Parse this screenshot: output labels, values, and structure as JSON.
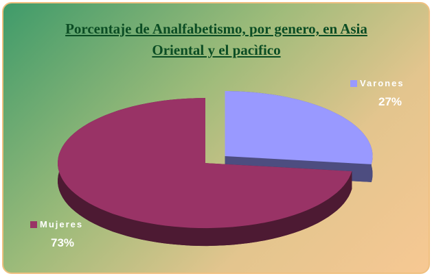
{
  "chart_data": {
    "type": "pie",
    "title": "Porcentaje de Analfabetismo, por genero, en Asia Oriental y el pacìfico",
    "categories": [
      "Varones",
      "Mujeres"
    ],
    "values": [
      27,
      73
    ],
    "value_labels": [
      "27%",
      "73%"
    ],
    "colors": [
      "#9999ff",
      "#993366"
    ]
  }
}
